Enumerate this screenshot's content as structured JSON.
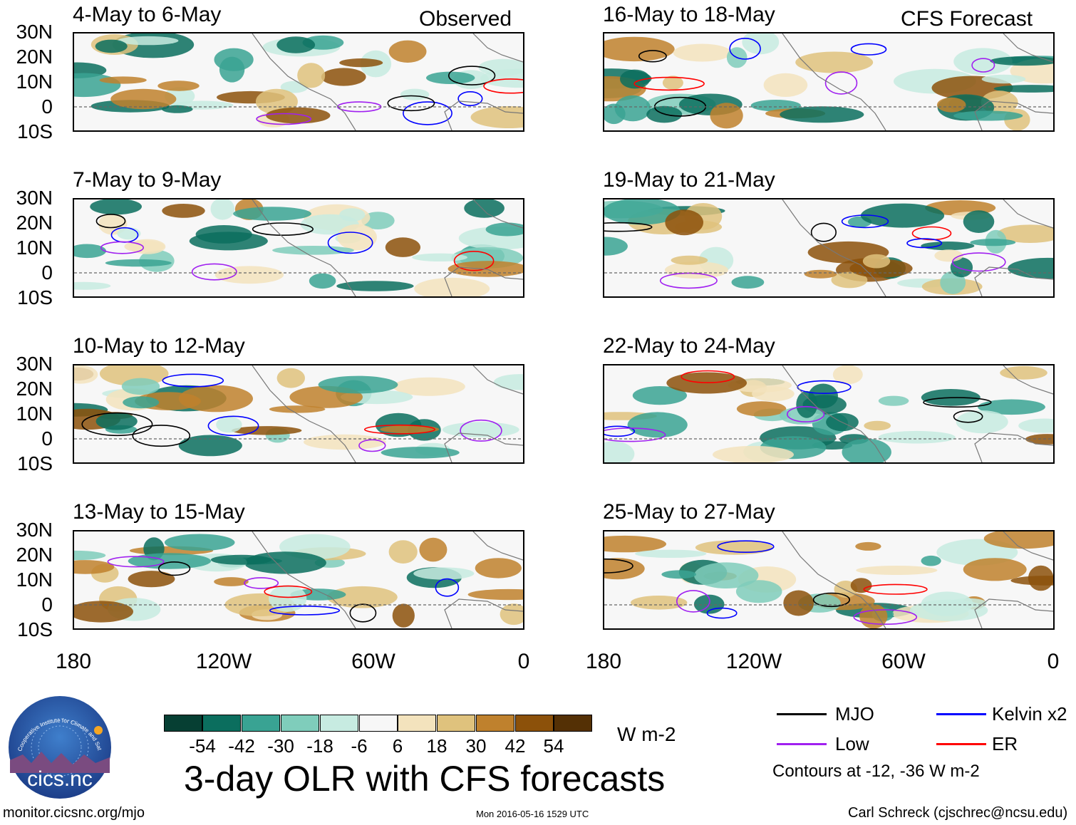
{
  "panels": {
    "observed_label": "Observed",
    "forecast_label": "CFS Forecast",
    "left_titles": [
      "4-May to 6-May",
      "7-May to 9-May",
      "10-May to 12-May",
      "13-May to 15-May"
    ],
    "right_titles": [
      "16-May to 18-May",
      "19-May to 21-May",
      "22-May to 24-May",
      "25-May to 27-May"
    ]
  },
  "axes": {
    "lat_labels": [
      "30N",
      "20N",
      "10N",
      "0",
      "10S"
    ],
    "lon_labels": [
      "180",
      "120W",
      "60W",
      "0"
    ]
  },
  "colorbar": {
    "ticks": [
      "-54",
      "-42",
      "-30",
      "-18",
      "-6",
      "6",
      "18",
      "30",
      "42",
      "54"
    ],
    "colors": [
      "#063f33",
      "#0b6e5e",
      "#39a393",
      "#7fcdbb",
      "#c7ebe1",
      "#f7f7f7",
      "#f3e3bd",
      "#dfc27d",
      "#bf812d",
      "#8c510a",
      "#543005"
    ],
    "units": "W m-2"
  },
  "legend": {
    "items": [
      {
        "label": "MJO",
        "color": "#000000"
      },
      {
        "label": "Kelvin x2",
        "color": "#0000ff"
      },
      {
        "label": "Low",
        "color": "#a020f0"
      },
      {
        "label": "ER",
        "color": "#ff0000"
      }
    ],
    "note": "Contours at -12, -36 W m-2"
  },
  "logo_text": "cics.nc",
  "logo_ring_text": "Cooperative Institute for Climate and Satellites",
  "main_title": "3-day OLR with CFS forecasts",
  "footer": {
    "left": "monitor.cicsnc.org/mjo",
    "center": "Mon 2016-05-16 1529 UTC",
    "right": "Carl Schreck (cjschrec@ncsu.edu)"
  }
}
